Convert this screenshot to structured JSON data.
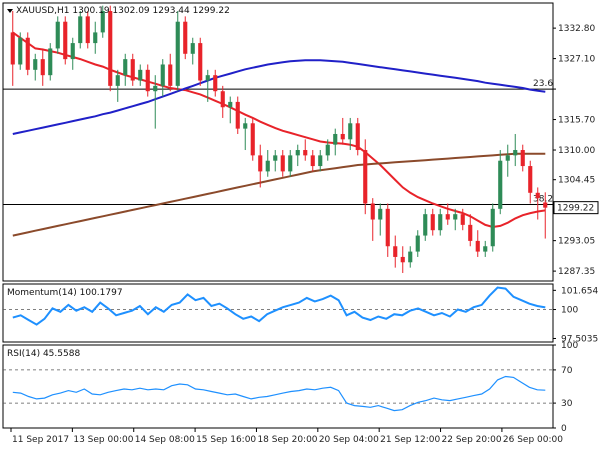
{
  "header": {
    "symbol_line": "XAUUSD,H1  1300.19 1302.09 1293.44 1299.22"
  },
  "colors": {
    "bull": "#2e8b57",
    "bear": "#e8232a",
    "ma_red": "#e8232a",
    "ma_blue": "#2020c8",
    "ma_brown": "#8b4a2b",
    "indicator": "#1e90ff",
    "price_tag_bg": "#ffffff",
    "grid_border": "#000000"
  },
  "chart_data": [
    {
      "type": "candlestick",
      "symbol": "XAUUSD",
      "timeframe": "H1",
      "ohlc_label": "1300.19 1302.09 1293.44 1299.22",
      "ylim": [
        1285.5,
        1337.5
      ],
      "yticks": [
        1332.8,
        1327.1,
        1321.4,
        1315.7,
        1310.0,
        1304.45,
        1299.22,
        1293.05,
        1287.35
      ],
      "ytick_labels": [
        "1332.80",
        "1327.10",
        "",
        "1315.70",
        "1310.00",
        "1304.45",
        "",
        "1293.05",
        "1287.35"
      ],
      "current_price": 1299.22,
      "current_price_label": "1299.22",
      "fib_levels": [
        {
          "label": "23.6",
          "value": 1321.4
        },
        {
          "label": "38.2",
          "value": 1299.8
        }
      ],
      "xtick_labels": [
        "11 Sep 2017",
        "13 Sep 00:00",
        "14 Sep 08:00",
        "15 Sep 16:00",
        "18 Sep 20:00",
        "20 Sep 04:00",
        "21 Sep 12:00",
        "22 Sep 20:00",
        "26 Sep 00:00"
      ],
      "xtick_index": [
        0,
        10,
        20,
        30,
        40,
        50,
        60,
        70,
        80
      ],
      "candles": [
        [
          1332,
          1336,
          1322,
          1326
        ],
        [
          1326,
          1332,
          1325,
          1331
        ],
        [
          1331,
          1332,
          1324,
          1325
        ],
        [
          1325,
          1328,
          1323,
          1327
        ],
        [
          1327,
          1329,
          1322,
          1324
        ],
        [
          1324,
          1330,
          1323,
          1329
        ],
        [
          1329,
          1335,
          1328,
          1334
        ],
        [
          1334,
          1335,
          1326,
          1327
        ],
        [
          1327,
          1331,
          1325,
          1330
        ],
        [
          1330,
          1336,
          1329,
          1335
        ],
        [
          1335,
          1336,
          1329,
          1330
        ],
        [
          1330,
          1334,
          1328,
          1332
        ],
        [
          1332,
          1337,
          1331,
          1336
        ],
        [
          1336,
          1337,
          1321,
          1322
        ],
        [
          1322,
          1325,
          1319,
          1324
        ],
        [
          1324,
          1328,
          1322,
          1327
        ],
        [
          1327,
          1328,
          1322,
          1323
        ],
        [
          1323,
          1326,
          1322,
          1325
        ],
        [
          1325,
          1326,
          1320,
          1321
        ],
        [
          1321,
          1324,
          1314,
          1322
        ],
        [
          1322,
          1327,
          1320,
          1326
        ],
        [
          1326,
          1328,
          1321,
          1322
        ],
        [
          1322,
          1336,
          1321,
          1334
        ],
        [
          1334,
          1335,
          1327,
          1328
        ],
        [
          1328,
          1331,
          1326,
          1330
        ],
        [
          1330,
          1331,
          1322,
          1323
        ],
        [
          1323,
          1325,
          1319,
          1324
        ],
        [
          1324,
          1325,
          1320,
          1321
        ],
        [
          1321,
          1322,
          1316,
          1318
        ],
        [
          1318,
          1320,
          1315,
          1319
        ],
        [
          1319,
          1320,
          1313,
          1314
        ],
        [
          1314,
          1316,
          1310,
          1315
        ],
        [
          1315,
          1316,
          1308,
          1309
        ],
        [
          1309,
          1311,
          1303,
          1306
        ],
        [
          1306,
          1310,
          1305,
          1308
        ],
        [
          1308,
          1310,
          1306,
          1309
        ],
        [
          1309,
          1310,
          1305,
          1306
        ],
        [
          1306,
          1310,
          1305,
          1309
        ],
        [
          1309,
          1311,
          1307,
          1310
        ],
        [
          1310,
          1312,
          1308,
          1309
        ],
        [
          1309,
          1310,
          1306,
          1307
        ],
        [
          1307,
          1310,
          1306,
          1309
        ],
        [
          1309,
          1312,
          1308,
          1311
        ],
        [
          1311,
          1314,
          1309,
          1313
        ],
        [
          1313,
          1316,
          1311,
          1312
        ],
        [
          1312,
          1316,
          1310,
          1315
        ],
        [
          1315,
          1316,
          1309,
          1310
        ],
        [
          1310,
          1312,
          1298,
          1300
        ],
        [
          1300,
          1301,
          1293,
          1297
        ],
        [
          1297,
          1300,
          1294,
          1299
        ],
        [
          1299,
          1300,
          1290,
          1292
        ],
        [
          1292,
          1294,
          1288,
          1290
        ],
        [
          1290,
          1292,
          1287,
          1289
        ],
        [
          1289,
          1292,
          1288,
          1291
        ],
        [
          1291,
          1295,
          1290,
          1294
        ],
        [
          1294,
          1299,
          1293,
          1298
        ],
        [
          1298,
          1299,
          1294,
          1295
        ],
        [
          1295,
          1299,
          1294,
          1298
        ],
        [
          1298,
          1300,
          1296,
          1297
        ],
        [
          1297,
          1299,
          1295,
          1298
        ],
        [
          1298,
          1299,
          1295,
          1296
        ],
        [
          1296,
          1298,
          1292,
          1293
        ],
        [
          1293,
          1295,
          1290,
          1291
        ],
        [
          1291,
          1293,
          1290,
          1292
        ],
        [
          1292,
          1300,
          1291,
          1299
        ],
        [
          1299,
          1310,
          1298,
          1308
        ],
        [
          1308,
          1311,
          1305,
          1309
        ],
        [
          1309,
          1313,
          1307,
          1310
        ],
        [
          1310,
          1311,
          1306,
          1307
        ],
        [
          1307,
          1308,
          1300,
          1302
        ],
        [
          1302,
          1303,
          1297,
          1301
        ],
        [
          1300.19,
          1302.09,
          1293.44,
          1299.22
        ]
      ],
      "moving_averages": [
        {
          "color_key": "ma_red",
          "values": [
            1332,
            1331,
            1330,
            1329,
            1328.8,
            1328.5,
            1328.2,
            1327.8,
            1327.4,
            1327,
            1326.5,
            1326,
            1325.6,
            1325,
            1324.5,
            1324,
            1323.6,
            1323.2,
            1322.8,
            1322.4,
            1322,
            1321.6,
            1321.4,
            1321.2,
            1320.8,
            1320.4,
            1319.8,
            1319.2,
            1318.6,
            1318,
            1317.3,
            1316.6,
            1316,
            1315.3,
            1314.7,
            1314.1,
            1313.6,
            1313.2,
            1312.8,
            1312.4,
            1312,
            1311.6,
            1311.4,
            1311.3,
            1311.2,
            1311,
            1310.6,
            1309.6,
            1308.4,
            1307.2,
            1305.8,
            1304.4,
            1303,
            1302,
            1301.2,
            1300.6,
            1300,
            1299.5,
            1299,
            1298.6,
            1298.2,
            1297.6,
            1296.8,
            1296,
            1295.6,
            1295.8,
            1296.4,
            1297.2,
            1297.8,
            1298.2,
            1298.5,
            1298.7
          ]
        },
        {
          "color_key": "ma_blue",
          "values": [
            1313,
            1313.3,
            1313.6,
            1313.9,
            1314.2,
            1314.5,
            1314.8,
            1315.1,
            1315.4,
            1315.7,
            1316,
            1316.3,
            1316.7,
            1317,
            1317.4,
            1317.8,
            1318.2,
            1318.6,
            1319,
            1319.5,
            1320,
            1320.5,
            1321,
            1321.5,
            1322,
            1322.5,
            1323,
            1323.5,
            1323.9,
            1324.3,
            1324.7,
            1325.1,
            1325.4,
            1325.7,
            1326,
            1326.2,
            1326.4,
            1326.6,
            1326.7,
            1326.8,
            1326.8,
            1326.8,
            1326.7,
            1326.6,
            1326.5,
            1326.3,
            1326.1,
            1325.9,
            1325.7,
            1325.5,
            1325.3,
            1325.1,
            1324.9,
            1324.7,
            1324.5,
            1324.3,
            1324.1,
            1323.9,
            1323.7,
            1323.5,
            1323.3,
            1323.1,
            1322.9,
            1322.6,
            1322.4,
            1322.2,
            1322,
            1321.8,
            1321.6,
            1321.3,
            1321.1,
            1320.9
          ]
        },
        {
          "color_key": "ma_brown",
          "values": [
            1294,
            1294.3,
            1294.6,
            1294.9,
            1295.2,
            1295.5,
            1295.8,
            1296.1,
            1296.4,
            1296.7,
            1297,
            1297.3,
            1297.6,
            1297.9,
            1298.2,
            1298.5,
            1298.8,
            1299.1,
            1299.4,
            1299.7,
            1300,
            1300.3,
            1300.6,
            1300.9,
            1301.2,
            1301.5,
            1301.8,
            1302.1,
            1302.4,
            1302.7,
            1303,
            1303.3,
            1303.6,
            1303.9,
            1304.2,
            1304.5,
            1304.8,
            1305.1,
            1305.4,
            1305.7,
            1306,
            1306.2,
            1306.4,
            1306.6,
            1306.8,
            1307,
            1307.2,
            1307.3,
            1307.4,
            1307.5,
            1307.6,
            1307.7,
            1307.8,
            1307.9,
            1308,
            1308.1,
            1308.2,
            1308.3,
            1308.4,
            1308.5,
            1308.6,
            1308.7,
            1308.8,
            1308.9,
            1309,
            1309.1,
            1309.2,
            1309.3,
            1309.3,
            1309.3,
            1309.3,
            1309.3
          ]
        }
      ]
    },
    {
      "type": "line",
      "title": "Momentum(14) 100.1797",
      "ylim": [
        97.2,
        102.2
      ],
      "yticks": [
        101.654,
        100,
        97.5035
      ],
      "ytick_labels": [
        "101.654",
        "100",
        "97.5035"
      ],
      "reference_lines": [
        100
      ],
      "values": [
        99.3,
        99.5,
        99.1,
        98.7,
        99.2,
        100.1,
        99.8,
        100.4,
        99.9,
        100.2,
        99.8,
        100.6,
        100.1,
        99.5,
        99.7,
        99.9,
        100.3,
        99.6,
        100.2,
        99.8,
        100.4,
        100.6,
        101.3,
        100.8,
        101.0,
        100.3,
        100.5,
        100.1,
        99.6,
        99.2,
        99.4,
        99.0,
        99.6,
        99.9,
        100.2,
        100.4,
        100.6,
        101.0,
        100.7,
        100.9,
        101.2,
        100.8,
        99.5,
        99.8,
        99.3,
        99.1,
        99.4,
        99.2,
        99.6,
        99.5,
        99.9,
        100.1,
        99.8,
        99.5,
        99.7,
        99.4,
        100.0,
        99.8,
        100.2,
        100.4,
        101.2,
        101.9,
        101.8,
        101.1,
        100.8,
        100.5,
        100.3,
        100.18
      ]
    },
    {
      "type": "line",
      "title": "RSI(14) 45.5588",
      "ylim": [
        0,
        100
      ],
      "yticks": [
        100,
        70,
        30,
        0
      ],
      "ytick_labels": [
        "100",
        "70",
        "30",
        "0"
      ],
      "reference_lines": [
        70,
        30
      ],
      "values": [
        43,
        42,
        38,
        35,
        36,
        40,
        42,
        45,
        43,
        47,
        41,
        40,
        43,
        45,
        47,
        46,
        48,
        46,
        47,
        46,
        51,
        53,
        52,
        47,
        46,
        44,
        42,
        40,
        41,
        38,
        35,
        37,
        38,
        40,
        42,
        44,
        45,
        47,
        46,
        48,
        49,
        45,
        30,
        27,
        26,
        25,
        27,
        24,
        21,
        22,
        27,
        31,
        33,
        36,
        34,
        33,
        35,
        37,
        39,
        41,
        47,
        58,
        62,
        61,
        55,
        49,
        46,
        45.56
      ]
    }
  ]
}
